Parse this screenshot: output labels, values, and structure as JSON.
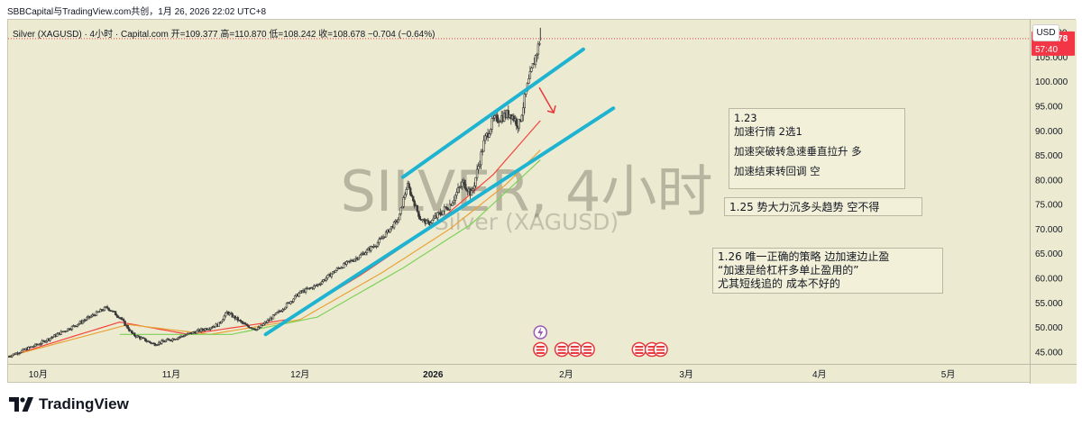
{
  "header": {
    "attribution": "SBBCapital与TradingView.com共创，1月 26, 2026 22:02 UTC+8",
    "symbol": "Silver (XAGUSD) · 4小时 · Capital.com",
    "open_label": "开=109.377",
    "high_label": "高=110.870",
    "low_label": "低=108.242",
    "close_label": "收=108.678",
    "change_label": "−0.704 (−0.64%)"
  },
  "currency_button": "USD",
  "watermark": {
    "title": "SILVER, 4小时",
    "subtitle": "Silver (XAGUSD)"
  },
  "price_tag": {
    "price": "108.678",
    "countdown": "57:40"
  },
  "notes": {
    "note1": [
      "1.23",
      "加速行情 2选1",
      "",
      "加速突破转急速垂直拉升 多",
      "",
      "加速结束转回调  空"
    ],
    "note2": "1.25   势大力沉多头趋势  空不得",
    "note3": [
      "1.26   唯一正确的策略  边加速边止盈",
      "“加速是给杠杆多单止盈用的”",
      "尤其短线追的  成本不好的"
    ]
  },
  "footer": {
    "brand": "TradingView"
  },
  "colors": {
    "background": "#ecebd1",
    "up_candle": "#3a3a3a",
    "down_candle": "#3a3a3a",
    "ema_fast": "#f4433c",
    "ema_mid": "#e8a33a",
    "ema_slow": "#7fd15a",
    "channel": "#1fb3d2",
    "price_tag": "#f23645",
    "annotation_arrow": "#e5393c"
  },
  "icons": {
    "event_icons": "us-flag-icon",
    "dividend_icon": "lightning-icon",
    "logo": "tradingview-logo-icon"
  },
  "chart_data": {
    "type": "candlestick",
    "title": "Silver (XAGUSD) · 4小时 · Capital.com",
    "timeframe": "4小时",
    "ylim": [
      42.5,
      112.5
    ],
    "yticks": [
      45,
      50,
      55,
      60,
      65,
      70,
      75,
      80,
      85,
      90,
      95,
      100,
      105,
      110
    ],
    "y_tick_labels": [
      "45.000",
      "50.000",
      "55.000",
      "60.000",
      "65.000",
      "70.000",
      "75.000",
      "80.000",
      "85.000",
      "90.000",
      "95.000",
      "100.000",
      "105.000",
      "110.000"
    ],
    "x_range": [
      "2025-09-24",
      "2026-05-20"
    ],
    "x_tick_labels": [
      {
        "label": "10月",
        "date": "2025-10-01"
      },
      {
        "label": "11月",
        "date": "2025-11-01"
      },
      {
        "label": "12月",
        "date": "2025-12-01"
      },
      {
        "label": "2026",
        "date": "2026-01-01"
      },
      {
        "label": "2月",
        "date": "2026-02-01"
      },
      {
        "label": "3月",
        "date": "2026-03-01"
      },
      {
        "label": "4月",
        "date": "2026-04-01"
      },
      {
        "label": "5月",
        "date": "2026-05-01"
      }
    ],
    "price_path": [
      {
        "date": "2025-09-24",
        "price": 44.0
      },
      {
        "date": "2025-10-01",
        "price": 46.5
      },
      {
        "date": "2025-10-10",
        "price": 50.5
      },
      {
        "date": "2025-10-17",
        "price": 54.0
      },
      {
        "date": "2025-10-20",
        "price": 52.0
      },
      {
        "date": "2025-10-23",
        "price": 48.5
      },
      {
        "date": "2025-10-28",
        "price": 46.5
      },
      {
        "date": "2025-11-03",
        "price": 48.0
      },
      {
        "date": "2025-11-12",
        "price": 50.5
      },
      {
        "date": "2025-11-14",
        "price": 53.0
      },
      {
        "date": "2025-11-18",
        "price": 50.5
      },
      {
        "date": "2025-11-21",
        "price": 49.5
      },
      {
        "date": "2025-11-26",
        "price": 53.0
      },
      {
        "date": "2025-12-01",
        "price": 57.0
      },
      {
        "date": "2025-12-05",
        "price": 58.5
      },
      {
        "date": "2025-12-10",
        "price": 62.0
      },
      {
        "date": "2025-12-15",
        "price": 64.5
      },
      {
        "date": "2025-12-19",
        "price": 67.0
      },
      {
        "date": "2025-12-24",
        "price": 72.0
      },
      {
        "date": "2025-12-26",
        "price": 79.0
      },
      {
        "date": "2025-12-29",
        "price": 72.0
      },
      {
        "date": "2025-12-31",
        "price": 71.0
      },
      {
        "date": "2026-01-05",
        "price": 75.0
      },
      {
        "date": "2026-01-08",
        "price": 79.5
      },
      {
        "date": "2026-01-10",
        "price": 77.0
      },
      {
        "date": "2026-01-13",
        "price": 88.0
      },
      {
        "date": "2026-01-15",
        "price": 92.0
      },
      {
        "date": "2026-01-19",
        "price": 93.5
      },
      {
        "date": "2026-01-21",
        "price": 91.0
      },
      {
        "date": "2026-01-23",
        "price": 99.0
      },
      {
        "date": "2026-01-26",
        "price": 108.7
      }
    ],
    "last_ohlc": {
      "open": 109.377,
      "high": 110.87,
      "low": 108.242,
      "close": 108.678,
      "change": -0.704,
      "change_pct": -0.64
    },
    "moving_averages": [
      {
        "color": "#f4433c",
        "path": [
          {
            "date": "2025-09-24",
            "price": 44.0
          },
          {
            "date": "2025-10-20",
            "price": 51.0
          },
          {
            "date": "2025-11-05",
            "price": 48.5
          },
          {
            "date": "2025-11-28",
            "price": 51.5
          },
          {
            "date": "2025-12-15",
            "price": 60.5
          },
          {
            "date": "2026-01-01",
            "price": 70.5
          },
          {
            "date": "2026-01-15",
            "price": 81.0
          },
          {
            "date": "2026-01-26",
            "price": 92.0
          }
        ]
      },
      {
        "color": "#e8a33a",
        "path": [
          {
            "date": "2025-09-24",
            "price": 44.0
          },
          {
            "date": "2025-10-22",
            "price": 50.5
          },
          {
            "date": "2025-11-10",
            "price": 48.5
          },
          {
            "date": "2025-12-01",
            "price": 51.5
          },
          {
            "date": "2025-12-20",
            "price": 61.0
          },
          {
            "date": "2026-01-05",
            "price": 70.0
          },
          {
            "date": "2026-01-18",
            "price": 79.0
          },
          {
            "date": "2026-01-26",
            "price": 86.0
          }
        ]
      },
      {
        "color": "#7fd15a",
        "path": [
          {
            "date": "2025-10-20",
            "price": 48.5
          },
          {
            "date": "2025-11-15",
            "price": 48.5
          },
          {
            "date": "2025-12-05",
            "price": 52.0
          },
          {
            "date": "2025-12-25",
            "price": 62.0
          },
          {
            "date": "2026-01-10",
            "price": 71.0
          },
          {
            "date": "2026-01-26",
            "price": 84.0
          }
        ]
      }
    ],
    "trendlines": [
      {
        "from": {
          "date": "2025-12-25",
          "price": 80.5
        },
        "to": {
          "date": "2026-02-05",
          "price": 106.5
        }
      },
      {
        "from": {
          "date": "2025-11-23",
          "price": 48.5
        },
        "to": {
          "date": "2026-02-12",
          "price": 94.5
        }
      }
    ],
    "current_price": 108.678,
    "event_markers": {
      "dividend": [
        "2026-01-26"
      ],
      "us_events": [
        "2026-01-26",
        "2026-01-31",
        "2026-02-03",
        "2026-02-06",
        "2026-02-18",
        "2026-02-21",
        "2026-02-23"
      ]
    }
  }
}
